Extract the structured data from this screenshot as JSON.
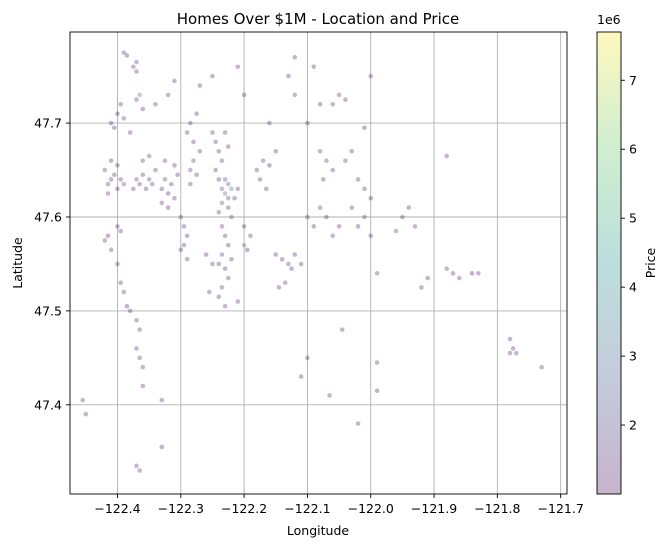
{
  "chart_data": {
    "type": "scatter",
    "title": "Homes Over $1M - Location and Price",
    "xlabel": "Longitude",
    "ylabel": "Latitude",
    "xlim": [
      -122.475,
      -121.69
    ],
    "ylim": [
      47.305,
      47.797
    ],
    "xticks": [
      -122.4,
      -122.3,
      -122.2,
      -122.1,
      -122.0,
      -121.9,
      -121.8,
      -121.7
    ],
    "xtick_labels": [
      "−122.4",
      "−122.3",
      "−122.2",
      "−122.1",
      "−122.0",
      "−121.9",
      "−121.8",
      "−121.7"
    ],
    "yticks": [
      47.4,
      47.5,
      47.6,
      47.7
    ],
    "ytick_labels": [
      "47.4",
      "47.5",
      "47.6",
      "47.7"
    ],
    "grid": true,
    "colorbar": {
      "label": "Price",
      "offset_text": "1e6",
      "min": 1.0,
      "max": 7.7,
      "ticks": [
        2,
        3,
        4,
        5,
        6,
        7
      ],
      "tick_labels": [
        "2",
        "3",
        "4",
        "5",
        "6",
        "7"
      ],
      "colormap": "viridis",
      "alpha": 0.3
    },
    "points": [
      [
        -122.41,
        47.64,
        1.3
      ],
      [
        -122.405,
        47.645,
        1.2
      ],
      [
        -122.415,
        47.635,
        1.5
      ],
      [
        -122.4,
        47.63,
        1.1
      ],
      [
        -122.42,
        47.65,
        1.4
      ],
      [
        -122.395,
        47.64,
        1.2
      ],
      [
        -122.41,
        47.66,
        1.1
      ],
      [
        -122.4,
        47.655,
        1.3
      ],
      [
        -122.415,
        47.625,
        1.2
      ],
      [
        -122.39,
        47.635,
        1.6
      ],
      [
        -122.41,
        47.7,
        1.2
      ],
      [
        -122.4,
        47.71,
        1.1
      ],
      [
        -122.395,
        47.72,
        1.3
      ],
      [
        -122.405,
        47.695,
        1.1
      ],
      [
        -122.39,
        47.705,
        1.4
      ],
      [
        -122.38,
        47.69,
        1.2
      ],
      [
        -122.39,
        47.775,
        1.3
      ],
      [
        -122.385,
        47.772,
        1.1
      ],
      [
        -122.375,
        47.76,
        1.4
      ],
      [
        -122.37,
        47.755,
        1.2
      ],
      [
        -122.37,
        47.765,
        1.5
      ],
      [
        -122.365,
        47.73,
        2.8
      ],
      [
        -122.37,
        47.725,
        1.3
      ],
      [
        -122.36,
        47.715,
        1.1
      ],
      [
        -122.37,
        47.64,
        1.4
      ],
      [
        -122.365,
        47.635,
        1.2
      ],
      [
        -122.36,
        47.645,
        1.3
      ],
      [
        -122.355,
        47.63,
        1.1
      ],
      [
        -122.35,
        47.64,
        1.6
      ],
      [
        -122.345,
        47.635,
        1.2
      ],
      [
        -122.34,
        47.65,
        1.3
      ],
      [
        -122.375,
        47.63,
        1.1
      ],
      [
        -122.36,
        47.66,
        1.2
      ],
      [
        -122.35,
        47.665,
        1.4
      ],
      [
        -122.33,
        47.63,
        1.3
      ],
      [
        -122.32,
        47.625,
        1.1
      ],
      [
        -122.325,
        47.64,
        1.5
      ],
      [
        -122.315,
        47.635,
        1.2
      ],
      [
        -122.31,
        47.62,
        1.4
      ],
      [
        -122.32,
        47.61,
        1.1
      ],
      [
        -122.33,
        47.615,
        1.3
      ],
      [
        -122.305,
        47.645,
        1.2
      ],
      [
        -122.31,
        47.655,
        1.1
      ],
      [
        -122.325,
        47.66,
        1.3
      ],
      [
        -122.3,
        47.6,
        1.4
      ],
      [
        -122.295,
        47.59,
        1.2
      ],
      [
        -122.29,
        47.58,
        1.1
      ],
      [
        -122.295,
        47.57,
        1.3
      ],
      [
        -122.3,
        47.565,
        1.2
      ],
      [
        -122.29,
        47.555,
        1.1
      ],
      [
        -122.285,
        47.65,
        1.5
      ],
      [
        -122.28,
        47.66,
        1.3
      ],
      [
        -122.275,
        47.645,
        1.2
      ],
      [
        -122.285,
        47.635,
        1.4
      ],
      [
        -122.27,
        47.67,
        1.1
      ],
      [
        -122.28,
        47.68,
        1.3
      ],
      [
        -122.29,
        47.69,
        1.2
      ],
      [
        -122.285,
        47.7,
        1.1
      ],
      [
        -122.275,
        47.71,
        1.3
      ],
      [
        -122.25,
        47.69,
        1.2
      ],
      [
        -122.245,
        47.68,
        1.4
      ],
      [
        -122.24,
        47.67,
        1.3
      ],
      [
        -122.235,
        47.66,
        1.5
      ],
      [
        -122.245,
        47.65,
        1.2
      ],
      [
        -122.24,
        47.64,
        1.1
      ],
      [
        -122.23,
        47.69,
        1.3
      ],
      [
        -122.225,
        47.675,
        1.2
      ],
      [
        -122.235,
        47.63,
        1.8
      ],
      [
        -122.23,
        47.625,
        2.5
      ],
      [
        -122.225,
        47.62,
        1.6
      ],
      [
        -122.22,
        47.63,
        3.1
      ],
      [
        -122.225,
        47.61,
        1.4
      ],
      [
        -122.235,
        47.615,
        2.2
      ],
      [
        -122.24,
        47.605,
        1.3
      ],
      [
        -122.22,
        47.6,
        1.5
      ],
      [
        -122.215,
        47.62,
        1.2
      ],
      [
        -122.21,
        47.63,
        1.4
      ],
      [
        -122.23,
        47.64,
        1.7
      ],
      [
        -122.225,
        47.635,
        2.0
      ],
      [
        -122.235,
        47.59,
        1.3
      ],
      [
        -122.23,
        47.58,
        1.2
      ],
      [
        -122.225,
        47.57,
        1.1
      ],
      [
        -122.235,
        47.56,
        1.4
      ],
      [
        -122.24,
        47.55,
        1.2
      ],
      [
        -122.23,
        47.545,
        1.3
      ],
      [
        -122.22,
        47.555,
        1.1
      ],
      [
        -122.225,
        47.535,
        1.2
      ],
      [
        -122.235,
        47.525,
        1.4
      ],
      [
        -122.24,
        47.515,
        1.1
      ],
      [
        -122.23,
        47.505,
        1.3
      ],
      [
        -122.2,
        47.57,
        2.6
      ],
      [
        -122.195,
        47.565,
        1.2
      ],
      [
        -122.19,
        47.58,
        1.3
      ],
      [
        -122.2,
        47.59,
        1.1
      ],
      [
        -122.18,
        47.65,
        1.2
      ],
      [
        -122.17,
        47.66,
        1.4
      ],
      [
        -122.16,
        47.655,
        1.1
      ],
      [
        -122.175,
        47.64,
        1.3
      ],
      [
        -122.15,
        47.67,
        1.2
      ],
      [
        -122.165,
        47.63,
        1.1
      ],
      [
        -122.15,
        47.56,
        1.3
      ],
      [
        -122.14,
        47.555,
        1.2
      ],
      [
        -122.13,
        47.55,
        1.5
      ],
      [
        -122.12,
        47.56,
        1.1
      ],
      [
        -122.11,
        47.55,
        1.4
      ],
      [
        -122.125,
        47.545,
        1.2
      ],
      [
        -122.135,
        47.53,
        1.3
      ],
      [
        -122.145,
        47.525,
        1.1
      ],
      [
        -122.1,
        47.6,
        1.2
      ],
      [
        -122.09,
        47.59,
        1.1
      ],
      [
        -122.08,
        47.61,
        1.3
      ],
      [
        -122.07,
        47.6,
        1.2
      ],
      [
        -122.06,
        47.58,
        1.4
      ],
      [
        -122.05,
        47.59,
        1.1
      ],
      [
        -122.08,
        47.67,
        1.2
      ],
      [
        -122.07,
        47.66,
        1.3
      ],
      [
        -122.075,
        47.64,
        1.1
      ],
      [
        -122.06,
        47.65,
        1.2
      ],
      [
        -122.04,
        47.66,
        1.4
      ],
      [
        -122.03,
        47.67,
        1.1
      ],
      [
        -122.06,
        47.72,
        1.3
      ],
      [
        -122.05,
        47.73,
        1.2
      ],
      [
        -122.04,
        47.725,
        1.1
      ],
      [
        -122.0,
        47.75,
        1.2
      ],
      [
        -122.02,
        47.64,
        1.3
      ],
      [
        -122.01,
        47.63,
        1.1
      ],
      [
        -122.0,
        47.62,
        1.2
      ],
      [
        -122.01,
        47.6,
        1.4
      ],
      [
        -122.02,
        47.59,
        1.1
      ],
      [
        -122.0,
        47.58,
        1.3
      ],
      [
        -121.99,
        47.54,
        1.4
      ],
      [
        -121.96,
        47.585,
        1.6
      ],
      [
        -121.95,
        47.6,
        1.2
      ],
      [
        -121.94,
        47.61,
        1.1
      ],
      [
        -121.93,
        47.59,
        1.3
      ],
      [
        -121.88,
        47.545,
        1.4
      ],
      [
        -121.87,
        47.54,
        1.2
      ],
      [
        -121.86,
        47.535,
        1.3
      ],
      [
        -121.84,
        47.54,
        1.1
      ],
      [
        -121.91,
        47.535,
        1.2
      ],
      [
        -121.92,
        47.525,
        1.3
      ],
      [
        -121.88,
        47.665,
        1.2
      ],
      [
        -121.83,
        47.54,
        1.3
      ],
      [
        -121.78,
        47.47,
        1.2
      ],
      [
        -121.775,
        47.46,
        1.1
      ],
      [
        -121.78,
        47.455,
        1.3
      ],
      [
        -121.77,
        47.455,
        1.2
      ],
      [
        -121.73,
        47.44,
        1.4
      ],
      [
        -122.42,
        47.575,
        1.3
      ],
      [
        -122.41,
        47.565,
        1.2
      ],
      [
        -122.415,
        47.58,
        1.1
      ],
      [
        -122.4,
        47.59,
        1.3
      ],
      [
        -122.395,
        47.585,
        1.2
      ],
      [
        -122.4,
        47.55,
        1.1
      ],
      [
        -122.395,
        47.53,
        1.2
      ],
      [
        -122.39,
        47.52,
        1.3
      ],
      [
        -122.385,
        47.505,
        1.1
      ],
      [
        -122.38,
        47.5,
        1.2
      ],
      [
        -122.37,
        47.49,
        1.3
      ],
      [
        -122.365,
        47.48,
        1.2
      ],
      [
        -122.37,
        47.46,
        1.4
      ],
      [
        -122.365,
        47.45,
        1.1
      ],
      [
        -122.36,
        47.44,
        1.3
      ],
      [
        -122.36,
        47.42,
        1.2
      ],
      [
        -122.455,
        47.405,
        1.3
      ],
      [
        -122.45,
        47.39,
        1.2
      ],
      [
        -122.33,
        47.405,
        1.1
      ],
      [
        -122.37,
        47.335,
        1.3
      ],
      [
        -122.365,
        47.33,
        1.2
      ],
      [
        -122.33,
        47.355,
        1.1
      ],
      [
        -122.1,
        47.45,
        1.2
      ],
      [
        -122.11,
        47.43,
        1.1
      ],
      [
        -122.065,
        47.41,
        1.3
      ],
      [
        -122.045,
        47.48,
        1.1
      ],
      [
        -121.99,
        47.445,
        1.2
      ],
      [
        -121.99,
        47.415,
        1.1
      ],
      [
        -122.02,
        47.38,
        1.3
      ],
      [
        -122.25,
        47.55,
        1.2
      ],
      [
        -122.26,
        47.56,
        1.1
      ],
      [
        -122.255,
        47.52,
        1.3
      ],
      [
        -122.21,
        47.51,
        1.2
      ],
      [
        -122.1,
        47.7,
        1.2
      ],
      [
        -122.08,
        47.72,
        1.1
      ],
      [
        -122.12,
        47.73,
        1.3
      ],
      [
        -122.16,
        47.7,
        1.2
      ],
      [
        -122.2,
        47.73,
        1.1
      ],
      [
        -122.21,
        47.76,
        1.2
      ],
      [
        -122.25,
        47.75,
        1.3
      ],
      [
        -122.27,
        47.74,
        1.1
      ],
      [
        -122.31,
        47.745,
        1.2
      ],
      [
        -122.32,
        47.73,
        1.4
      ],
      [
        -122.34,
        47.72,
        1.2
      ],
      [
        -122.12,
        47.77,
        1.3
      ],
      [
        -122.13,
        47.75,
        1.1
      ],
      [
        -122.09,
        47.76,
        1.2
      ],
      [
        -122.01,
        47.695,
        1.1
      ],
      [
        -122.03,
        47.61,
        1.3
      ]
    ]
  }
}
